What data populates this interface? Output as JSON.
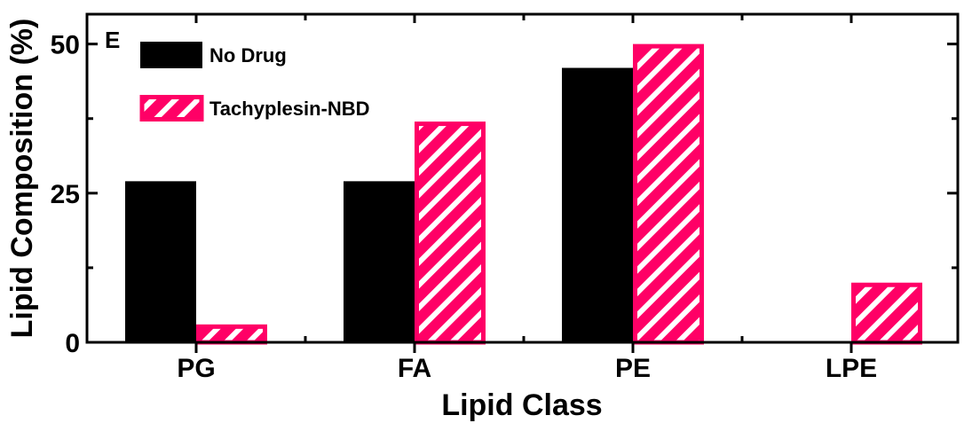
{
  "chart_data": {
    "type": "bar",
    "panel_label": "E",
    "categories": [
      "PG",
      "FA",
      "PE",
      "LPE"
    ],
    "series": [
      {
        "name": "No Drug",
        "values": [
          27,
          27,
          46,
          0
        ],
        "color": "#000000",
        "pattern": "solid"
      },
      {
        "name": "Tachyplesin-NBD",
        "values": [
          3,
          37,
          50,
          10
        ],
        "color": "#ff0066",
        "pattern": "hatched"
      }
    ],
    "xlabel": "Lipid Class",
    "ylabel": "Lipid Composition (%)",
    "ylim": [
      0,
      55
    ],
    "yticks": [
      0,
      25,
      50
    ],
    "grid": false,
    "legend_position": "top-left"
  }
}
